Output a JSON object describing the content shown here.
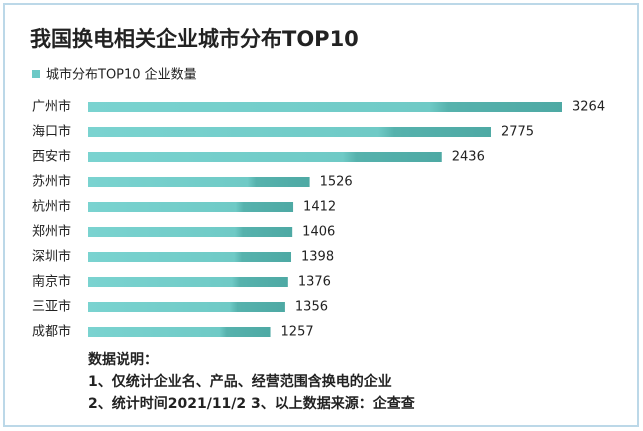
{
  "chart_data": {
    "type": "bar",
    "orientation": "horizontal",
    "title": "我国换电相关企业城市分布TOP10",
    "categories": [
      "广州市",
      "海口市",
      "西安市",
      "苏州市",
      "杭州市",
      "郑州市",
      "深圳市",
      "南京市",
      "三亚市",
      "成都市"
    ],
    "series": [
      {
        "name": "城市分布TOP10 企业数量",
        "color": "#6cc9c6",
        "values": [
          3264,
          2775,
          2436,
          1526,
          1412,
          1406,
          1398,
          1376,
          1356,
          1257
        ]
      }
    ],
    "notes": [
      "数据说明：",
      "1、仅统计企业名、产品、经营范围含换电的企业",
      "2、统计时间2021/11/2   3、以上数据来源：企查查"
    ]
  }
}
